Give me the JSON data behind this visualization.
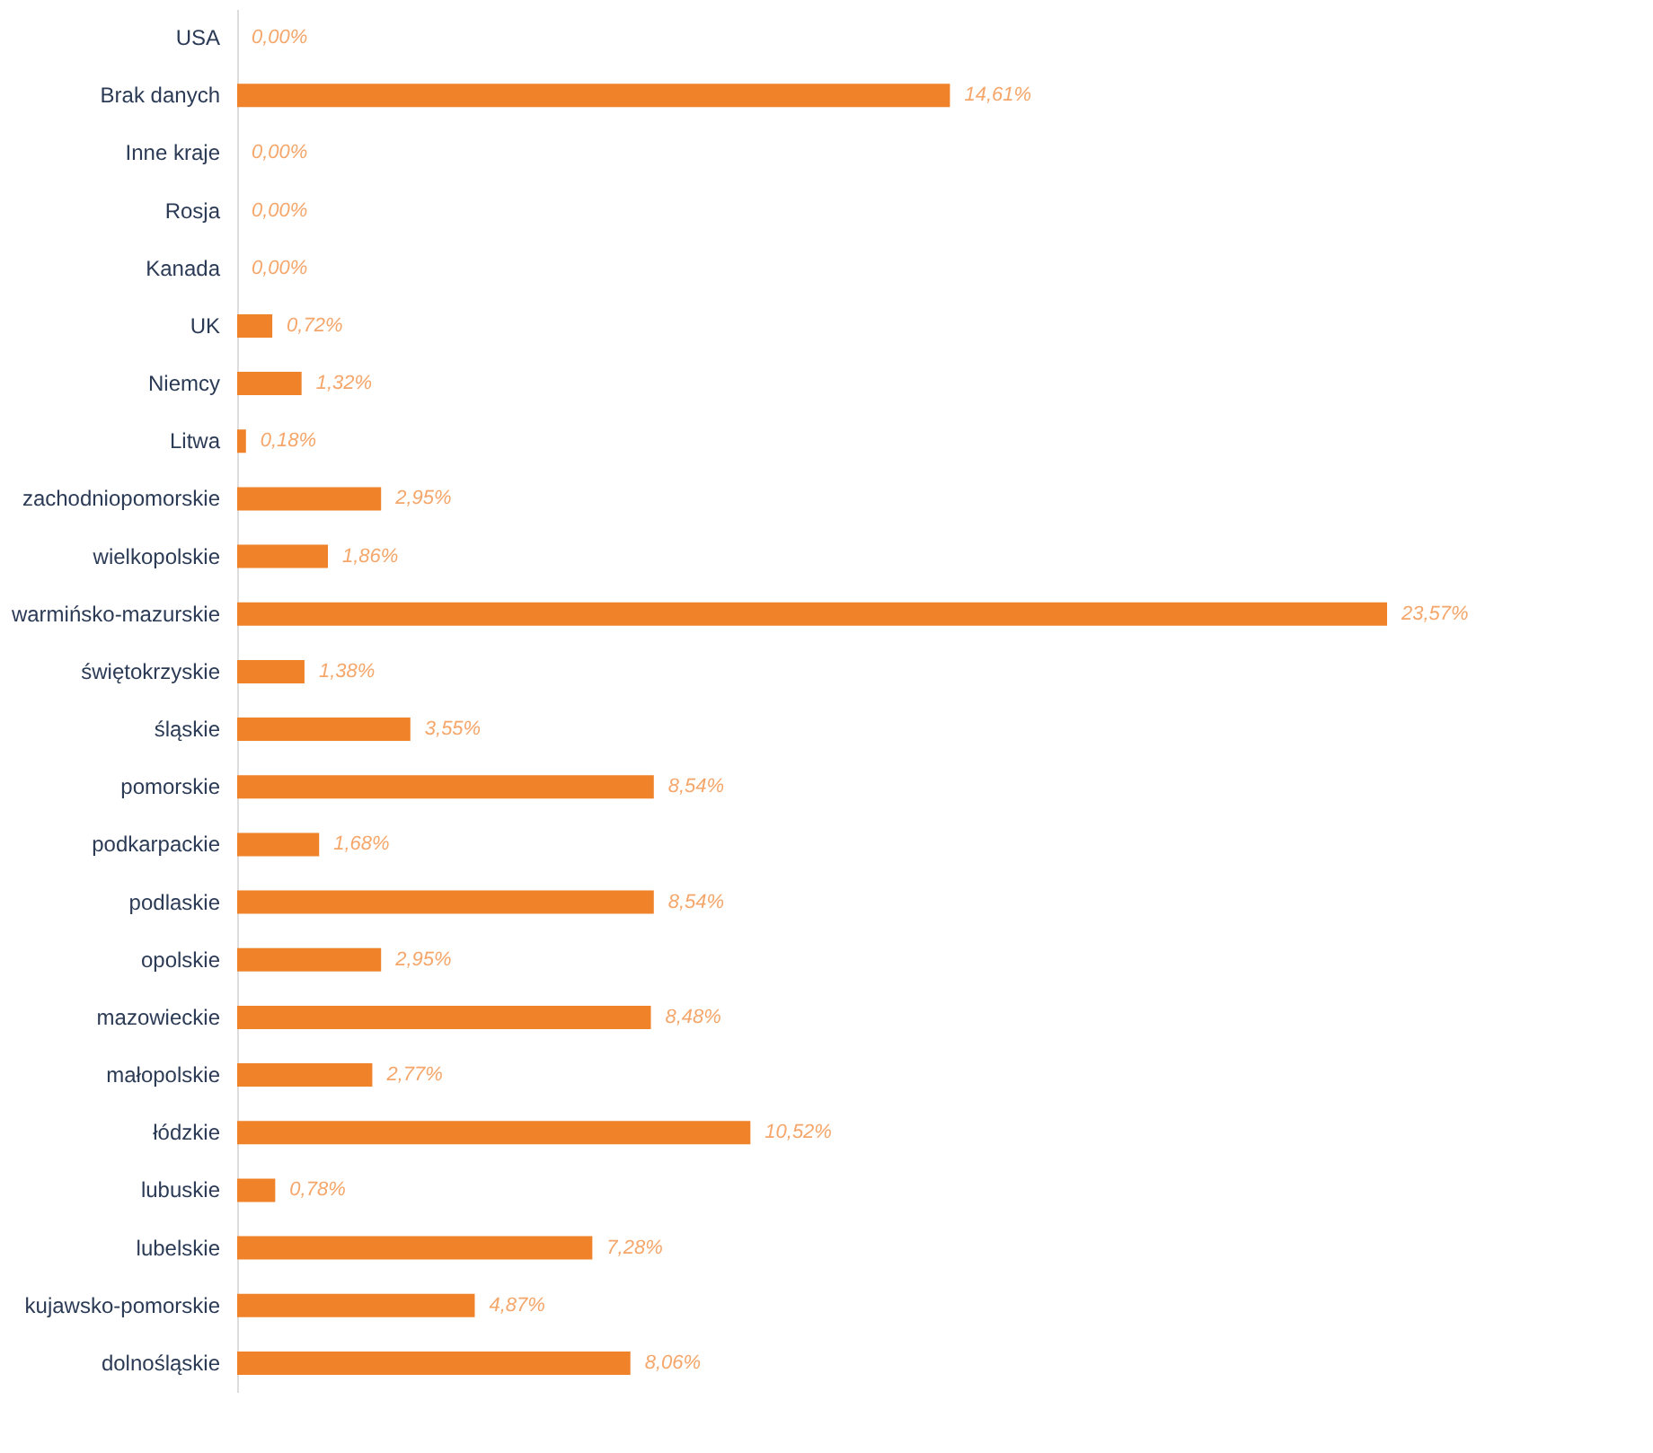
{
  "chart_data": {
    "type": "bar",
    "orientation": "horizontal",
    "categories": [
      "USA",
      "Brak danych",
      "Inne kraje",
      "Rosja",
      "Kanada",
      "UK",
      "Niemcy",
      "Litwa",
      "zachodniopomorskie",
      "wielkopolskie",
      "warmińsko-mazurskie",
      "świętokrzyskie",
      "śląskie",
      "pomorskie",
      "podkarpackie",
      "podlaskie",
      "opolskie",
      "mazowieckie",
      "małopolskie",
      "łódzkie",
      "lubuskie",
      "lubelskie",
      "kujawsko-pomorskie",
      "dolnośląskie"
    ],
    "values": [
      0,
      14.61,
      0,
      0,
      0,
      0.72,
      1.32,
      0.18,
      2.95,
      1.86,
      23.57,
      1.38,
      3.55,
      8.54,
      1.68,
      8.54,
      2.95,
      8.48,
      2.77,
      10.52,
      0.78,
      7.28,
      4.87,
      8.06
    ],
    "value_labels": [
      "0,00%",
      "14,61%",
      "0,00%",
      "0,00%",
      "0,00%",
      "0,72%",
      "1,32%",
      "0,18%",
      "2,95%",
      "1,86%",
      "23,57%",
      "1,38%",
      "3,55%",
      "8,54%",
      "1,68%",
      "8,54%",
      "2,95%",
      "8,48%",
      "2,77%",
      "10,52%",
      "0,78%",
      "7,28%",
      "4,87%",
      "8,06%"
    ],
    "color": "#f0832a",
    "xlim": [
      0,
      23.57
    ],
    "grid": false
  }
}
